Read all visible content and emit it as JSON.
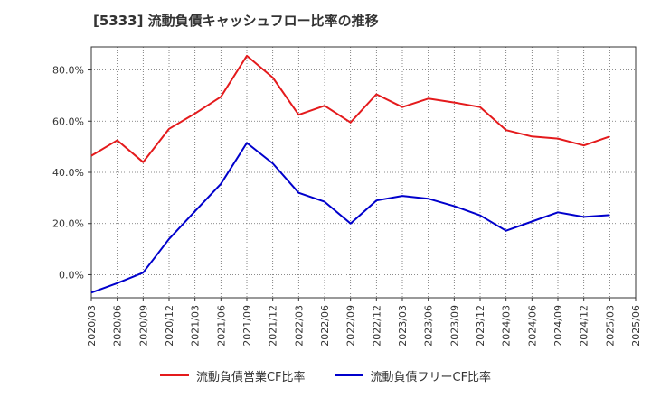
{
  "chart_data": {
    "type": "line",
    "title": "[5333]  流動負債キャッシュフロー比率の推移",
    "xlabel": "",
    "ylabel": "",
    "ylim": [
      -9,
      89
    ],
    "yticks": [
      0,
      20,
      40,
      60,
      80
    ],
    "ytick_labels": [
      "0.0%",
      "20.0%",
      "40.0%",
      "60.0%",
      "80.0%"
    ],
    "grid": true,
    "legend_position": "bottom",
    "categories": [
      "2020/03",
      "2020/06",
      "2020/09",
      "2020/12",
      "2021/03",
      "2021/06",
      "2021/09",
      "2021/12",
      "2022/03",
      "2022/06",
      "2022/09",
      "2022/12",
      "2023/03",
      "2023/06",
      "2023/09",
      "2023/12",
      "2024/03",
      "2024/06",
      "2024/09",
      "2024/12",
      "2025/03",
      "2025/06"
    ],
    "series": [
      {
        "name": "流動負債営業CF比率",
        "color": "#e41a1c",
        "values": [
          46.5,
          52.5,
          44.0,
          57.0,
          63.0,
          69.5,
          85.5,
          77.0,
          62.5,
          66.0,
          59.5,
          70.5,
          65.5,
          68.8,
          67.3,
          65.5,
          56.5,
          54.0,
          53.2,
          50.5,
          54.0,
          null
        ]
      },
      {
        "name": "流動負債フリーCF比率",
        "color": "#0000cc",
        "values": [
          -7.0,
          -3.3,
          0.8,
          14.0,
          24.8,
          35.5,
          51.5,
          43.5,
          32.0,
          28.5,
          20.0,
          29.0,
          30.8,
          29.7,
          26.8,
          23.2,
          17.2,
          20.8,
          24.4,
          22.6,
          23.3,
          null
        ]
      }
    ]
  }
}
